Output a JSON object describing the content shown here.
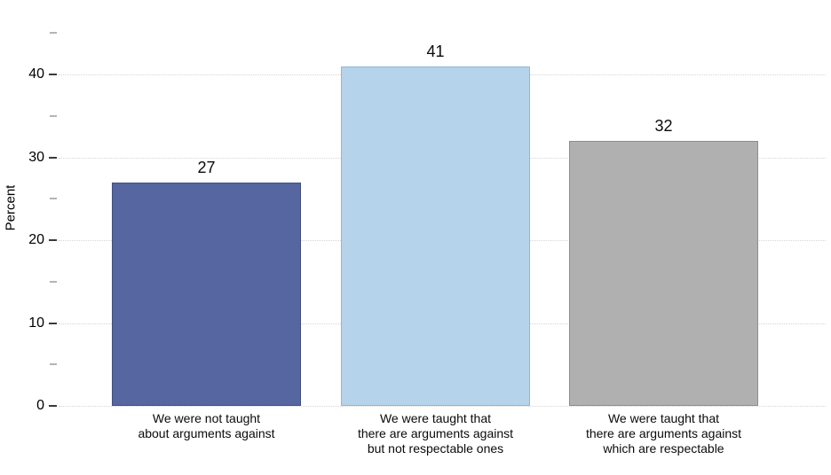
{
  "chart_data": {
    "type": "bar",
    "title": "",
    "xlabel": "",
    "ylabel": "Percent",
    "categories": [
      "We were not taught\nabout arguments against",
      "We were taught that\nthere are arguments against\nbut not respectable ones",
      "We were taught that\nthere are arguments against\nwhich are respectable"
    ],
    "values": [
      27,
      41,
      32
    ],
    "value_label_format": "integer above bar",
    "bar_colors": [
      "#5566a1",
      "#b5d3ea",
      "#b0b0b0"
    ],
    "bar_border_colors": [
      "#43507e",
      "#95b6d3",
      "#8d8d8d"
    ],
    "y_major_ticks": [
      0,
      10,
      20,
      30,
      40
    ],
    "y_minor_ticks": [
      5,
      15,
      25,
      35,
      45
    ],
    "ylim": [
      0,
      45.8
    ],
    "grid": "horizontal dotted lines at major ticks",
    "legend": "none"
  },
  "colors": {
    "background": "#ffffff",
    "gridline": "#d6d6d6",
    "major_tick": "#3a3a3a",
    "minor_tick": "#b4b4b4",
    "text": "#000000"
  }
}
